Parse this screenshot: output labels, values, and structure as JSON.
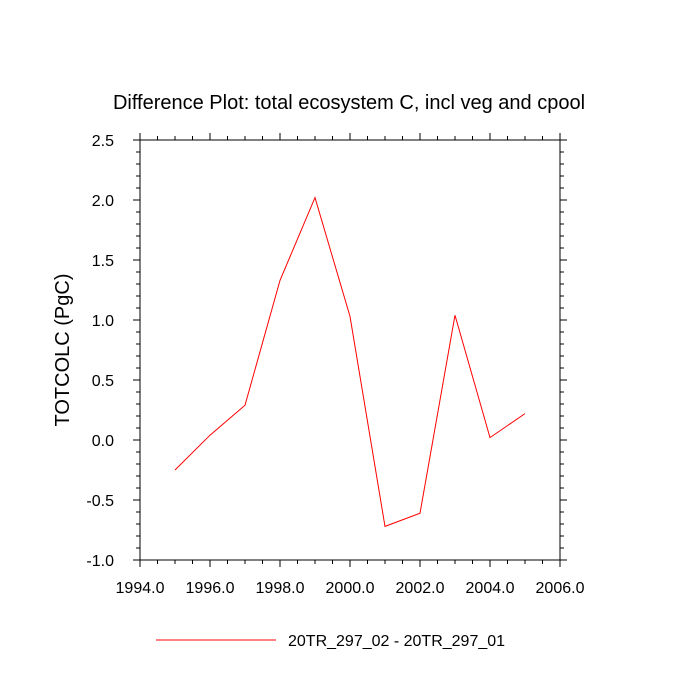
{
  "chart_data": {
    "type": "line",
    "title": "Difference Plot: total ecosystem C, incl veg and cpool",
    "xlabel": "",
    "ylabel": "TOTCOLC  (PgC)",
    "xlim": [
      1994.0,
      2006.0
    ],
    "ylim": [
      -1.0,
      2.5
    ],
    "x_ticks": [
      1994.0,
      1996.0,
      1998.0,
      2000.0,
      2002.0,
      2004.0,
      2006.0
    ],
    "x_tick_labels": [
      "1994.0",
      "1996.0",
      "1998.0",
      "2000.0",
      "2002.0",
      "2004.0",
      "2006.0"
    ],
    "y_ticks": [
      -1.0,
      -0.5,
      0.0,
      0.5,
      1.0,
      1.5,
      2.0,
      2.5
    ],
    "y_tick_labels": [
      "-1.0",
      "-0.5",
      "0.0",
      "0.5",
      "1.0",
      "1.5",
      "2.0",
      "2.5"
    ],
    "grid": false,
    "legend_position": "bottom",
    "series": [
      {
        "name": "20TR_297_02 - 20TR_297_01",
        "color": "#ff0000",
        "x": [
          1995,
          1996,
          1997,
          1998,
          1999,
          2000,
          2001,
          2002,
          2003,
          2004,
          2005
        ],
        "values": [
          -0.25,
          0.04,
          0.29,
          1.33,
          2.02,
          1.03,
          -0.72,
          -0.61,
          1.04,
          0.02,
          0.22
        ]
      }
    ]
  }
}
